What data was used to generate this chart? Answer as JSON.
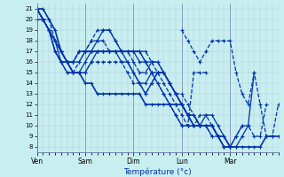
{
  "xlabel": "Température (°c)",
  "bg_color": "#c8eef0",
  "grid_color_minor": "#b0c8d8",
  "grid_color_major": "#8899bb",
  "line_color": "#0033aa",
  "ylim": [
    7.5,
    21.5
  ],
  "yticks": [
    8,
    9,
    10,
    11,
    12,
    13,
    14,
    15,
    16,
    17,
    18,
    19,
    20,
    21
  ],
  "day_positions": [
    0,
    48,
    96,
    144,
    192
  ],
  "day_labels": [
    "Ven",
    "Sam",
    "Dim",
    "Lun",
    "Mar"
  ],
  "total_hours": 240,
  "lines": [
    {
      "x": [
        0,
        6,
        12,
        18,
        24,
        30,
        36,
        42,
        48,
        54,
        60,
        66,
        72,
        78,
        84,
        90,
        96,
        102,
        108,
        114,
        120,
        126,
        132,
        138,
        144,
        150,
        156,
        162,
        168,
        174,
        180,
        186,
        192,
        198,
        204,
        210,
        216,
        222,
        228,
        234,
        240
      ],
      "y": [
        21,
        21,
        20,
        19,
        17,
        16,
        15,
        15,
        14,
        14,
        13,
        13,
        13,
        13,
        13,
        13,
        13,
        13,
        12,
        12,
        12,
        12,
        12,
        12,
        12,
        11,
        11,
        10,
        10,
        10,
        9,
        9,
        8,
        8,
        8,
        8,
        8,
        8,
        9,
        9,
        9
      ],
      "style": "-",
      "lw": 1.2
    },
    {
      "x": [
        0,
        6,
        12,
        18,
        24,
        30,
        36,
        42,
        48,
        54,
        60,
        66,
        72,
        78,
        84,
        90,
        96,
        102,
        108,
        114,
        120,
        126,
        132,
        138,
        144,
        150,
        156,
        162,
        168,
        174,
        180,
        186,
        192,
        198,
        204,
        210,
        216,
        222,
        228
      ],
      "y": [
        21,
        20,
        20,
        18,
        17,
        16,
        15,
        15,
        15,
        16,
        16,
        16,
        16,
        16,
        16,
        15,
        14,
        14,
        13,
        14,
        15,
        15,
        14,
        13,
        13,
        12,
        11,
        10,
        10,
        10,
        9,
        8,
        8,
        9,
        10,
        10,
        9,
        9,
        12
      ],
      "style": "--",
      "lw": 0.9
    },
    {
      "x": [
        0,
        6,
        12,
        18,
        24,
        30,
        36,
        42,
        48,
        54,
        60,
        66,
        72,
        78,
        84,
        90,
        96,
        102,
        108,
        114,
        120,
        126,
        132,
        138,
        144,
        150,
        156,
        162,
        168,
        174,
        180,
        186,
        192,
        198,
        204,
        210,
        216
      ],
      "y": [
        21,
        20,
        19,
        18,
        16,
        16,
        15,
        15,
        15,
        16,
        17,
        17,
        17,
        17,
        16,
        16,
        15,
        14,
        13,
        14,
        15,
        15,
        14,
        13,
        12,
        11,
        10,
        10,
        11,
        11,
        10,
        9,
        8,
        8,
        9,
        10,
        15
      ],
      "style": "-",
      "lw": 0.9
    },
    {
      "x": [
        0,
        6,
        12,
        18,
        24,
        30,
        36,
        42,
        48,
        54,
        60,
        66,
        72,
        78,
        84,
        90,
        96,
        102,
        108,
        114,
        120,
        126,
        132,
        138,
        144,
        150,
        156,
        162,
        168,
        174,
        180,
        186,
        192,
        198,
        204
      ],
      "y": [
        21,
        20,
        19,
        17,
        16,
        15,
        15,
        15,
        16,
        17,
        18,
        19,
        19,
        18,
        17,
        16,
        15,
        14,
        14,
        15,
        15,
        15,
        14,
        13,
        12,
        11,
        10,
        10,
        10,
        10,
        9,
        8,
        8,
        9,
        10
      ],
      "style": "-",
      "lw": 0.9
    },
    {
      "x": [
        0,
        6,
        12,
        18,
        24,
        30,
        36,
        42,
        48,
        54,
        60,
        66,
        72,
        78,
        84,
        90,
        96,
        102,
        108,
        114,
        120,
        126,
        132,
        138,
        144,
        150,
        156,
        162,
        168,
        174,
        180,
        186,
        192
      ],
      "y": [
        21,
        20,
        19,
        17,
        16,
        15,
        15,
        16,
        17,
        18,
        19,
        19,
        19,
        18,
        17,
        17,
        16,
        15,
        15,
        16,
        16,
        15,
        14,
        13,
        12,
        11,
        10,
        11,
        11,
        10,
        9,
        8,
        8
      ],
      "style": "--",
      "lw": 0.9
    },
    {
      "x": [
        0,
        6,
        12,
        18,
        24,
        30,
        36,
        42,
        48,
        54,
        60,
        66,
        72,
        78,
        84,
        90,
        96,
        102,
        108,
        114,
        120,
        126,
        132,
        138,
        144,
        150,
        156,
        162,
        168,
        174,
        180,
        186
      ],
      "y": [
        21,
        20,
        19,
        17,
        16,
        16,
        16,
        16,
        17,
        17,
        17,
        17,
        17,
        17,
        17,
        17,
        17,
        16,
        16,
        16,
        16,
        15,
        14,
        13,
        12,
        11,
        10,
        10,
        10,
        10,
        9,
        8
      ],
      "style": "-",
      "lw": 0.9
    },
    {
      "x": [
        0,
        6,
        12,
        18,
        24,
        30,
        36,
        42,
        48,
        54,
        60,
        66,
        72,
        78,
        84,
        90,
        96,
        102,
        108,
        114,
        120,
        126,
        132,
        138,
        144,
        150,
        156,
        162,
        168,
        174,
        180
      ],
      "y": [
        21,
        20,
        19,
        18,
        17,
        16,
        16,
        17,
        17,
        17,
        17,
        17,
        17,
        17,
        17,
        17,
        17,
        17,
        17,
        16,
        15,
        14,
        13,
        12,
        11,
        10,
        10,
        10,
        10,
        9,
        9
      ],
      "style": "--",
      "lw": 0.9
    },
    {
      "x": [
        0,
        6,
        12,
        18,
        24,
        30,
        36,
        42,
        48,
        54,
        60,
        66,
        72,
        78,
        84,
        90,
        96,
        102,
        108,
        114,
        120,
        126,
        132,
        138,
        144,
        150,
        156,
        162,
        168,
        174
      ],
      "y": [
        21,
        20,
        19,
        18,
        17,
        16,
        16,
        17,
        17,
        17,
        17,
        17,
        17,
        17,
        17,
        17,
        17,
        17,
        16,
        15,
        14,
        13,
        12,
        11,
        10,
        10,
        10,
        10,
        10,
        9
      ],
      "style": "-",
      "lw": 0.9
    },
    {
      "x": [
        0,
        6,
        12,
        18,
        24,
        30,
        36,
        42,
        48,
        54,
        60,
        66,
        72,
        78,
        84,
        90,
        96,
        102,
        108,
        114,
        120,
        126,
        132,
        138,
        144,
        150,
        156,
        162,
        168
      ],
      "y": [
        20,
        20,
        19,
        18,
        17,
        16,
        16,
        17,
        17,
        18,
        18,
        18,
        17,
        17,
        17,
        17,
        17,
        17,
        16,
        15,
        14,
        13,
        12,
        11,
        10,
        10,
        15,
        15,
        15
      ],
      "style": "--",
      "lw": 0.9
    },
    {
      "x": [
        144,
        150,
        156,
        162,
        168,
        174,
        180,
        186,
        192,
        198,
        204,
        210,
        216,
        222,
        228,
        234,
        240
      ],
      "y": [
        19,
        18,
        17,
        16,
        17,
        18,
        18,
        18,
        18,
        15,
        13,
        12,
        15,
        12,
        9,
        9,
        12
      ],
      "style": "--",
      "lw": 0.9
    }
  ]
}
